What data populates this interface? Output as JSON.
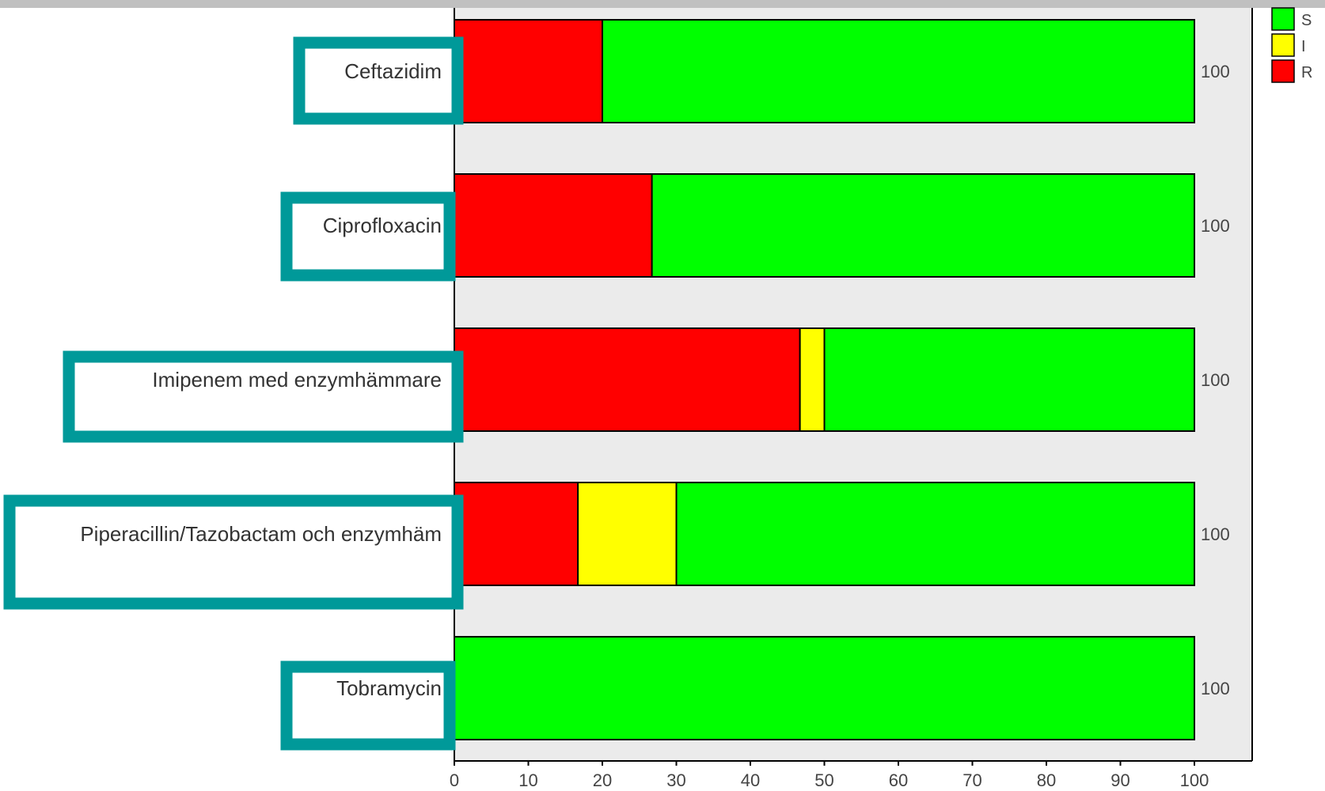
{
  "chart_data": {
    "type": "bar",
    "orientation": "horizontal",
    "stacked": true,
    "categories": [
      "Ceftazidim",
      "Ciprofloxacin",
      "Imipenem med enzymhämmare",
      "Piperacillin/Tazobactam och enzymhäm",
      "Tobramycin"
    ],
    "series": [
      {
        "name": "R",
        "values": [
          20,
          26.7,
          46.7,
          16.7,
          0
        ]
      },
      {
        "name": "I",
        "values": [
          0,
          0,
          3.3,
          13.3,
          0
        ]
      },
      {
        "name": "S",
        "values": [
          80,
          73.3,
          50,
          70,
          100
        ]
      }
    ],
    "totals": [
      "100",
      "100",
      "100",
      "100",
      "100"
    ],
    "xlim": [
      0,
      107
    ],
    "xticks": [
      "0",
      "10",
      "20",
      "30",
      "40",
      "50",
      "60",
      "70",
      "80",
      "90",
      "100"
    ],
    "title": "",
    "xlabel": "",
    "ylabel": "",
    "grid": false,
    "legend": {
      "position": "top-right",
      "order": [
        "S",
        "I",
        "R"
      ]
    },
    "colors": {
      "S": "#00ff00",
      "I": "#ffff00",
      "R": "#ff0000",
      "plot_background": "#ebebeb",
      "highlight_box": "#009999"
    }
  }
}
